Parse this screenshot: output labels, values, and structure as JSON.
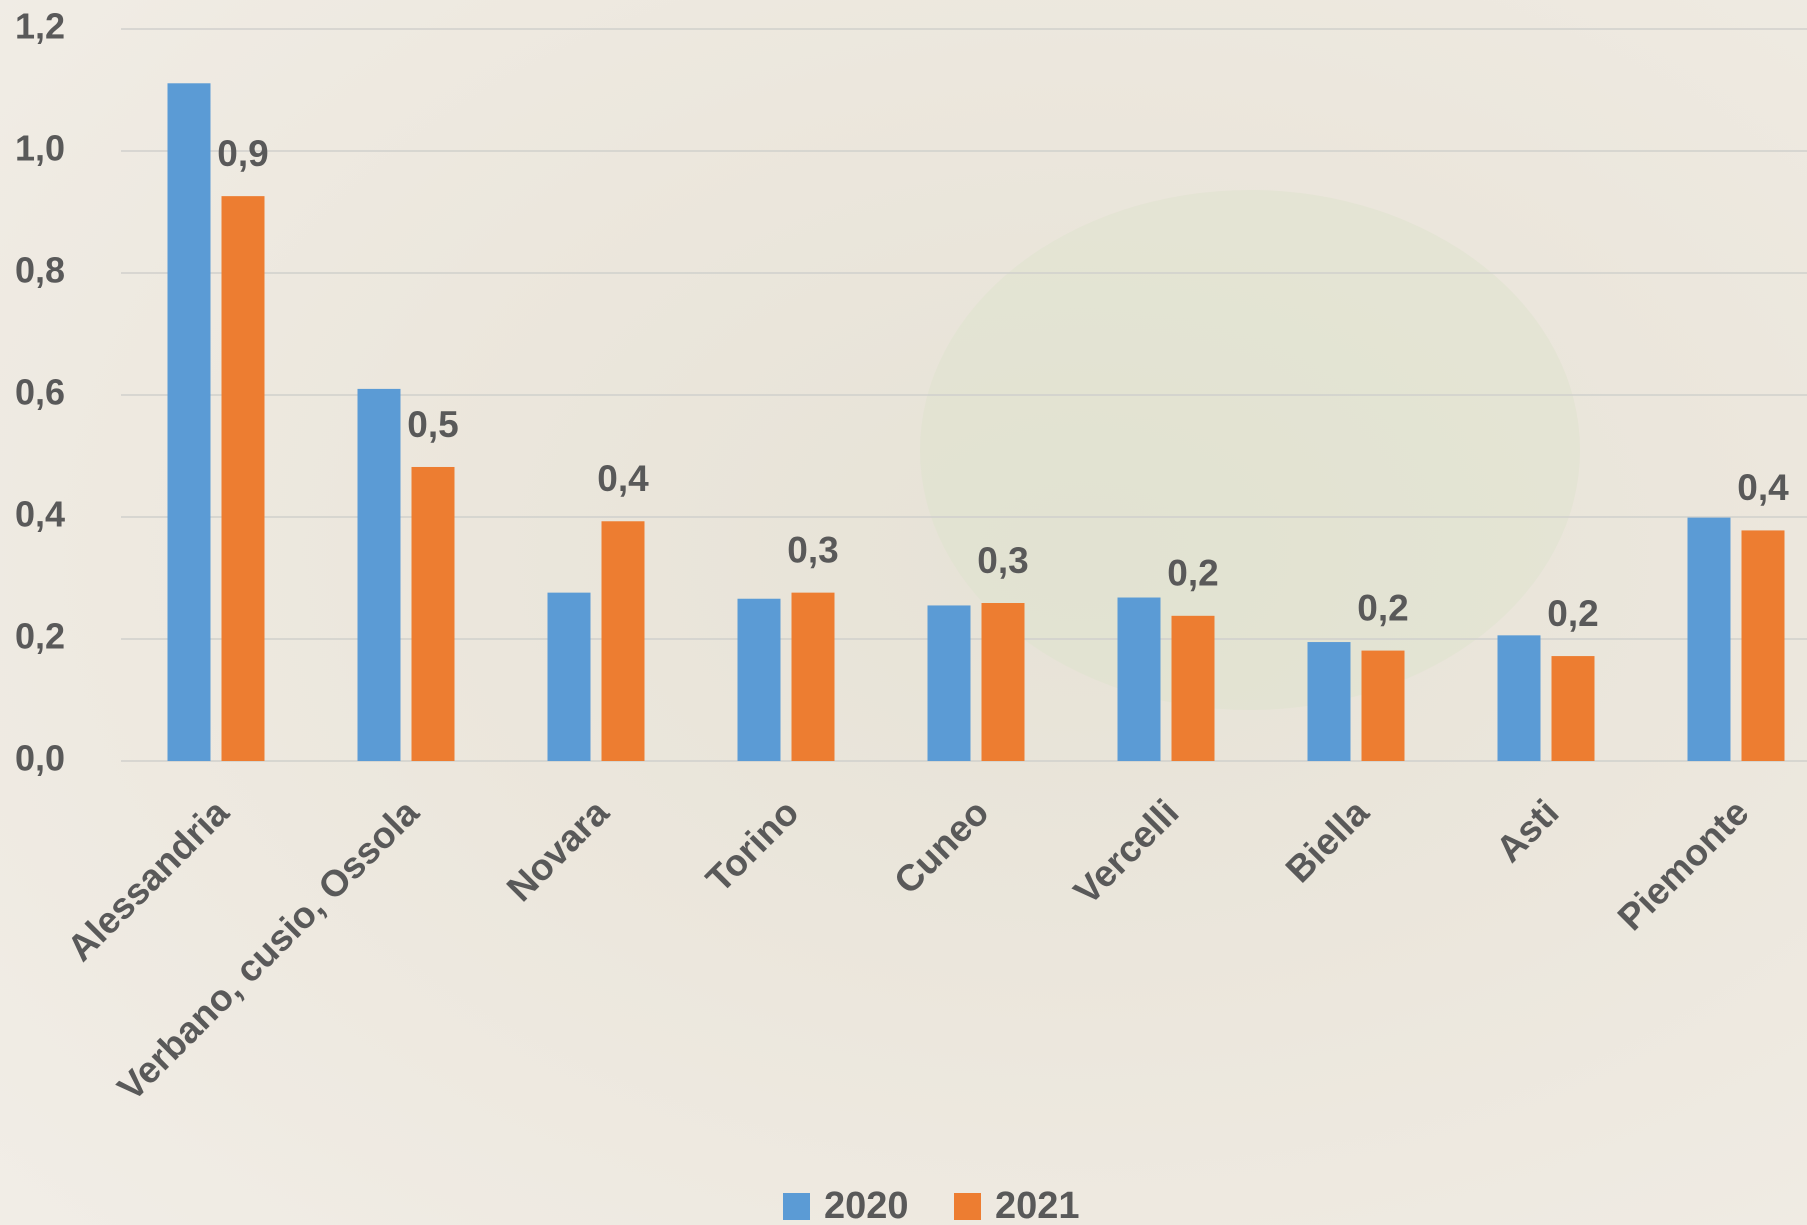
{
  "chart_data": {
    "type": "bar",
    "categories": [
      "Alessandria",
      "Verbano, cusio, Ossola",
      "Novara",
      "Torino",
      "Cuneo",
      "Vercelli",
      "Biella",
      "Asti",
      "Piemonte"
    ],
    "series": [
      {
        "name": "2020",
        "color": "#5b9bd5",
        "values": [
          1.111,
          0.61,
          0.276,
          0.266,
          0.255,
          0.268,
          0.195,
          0.206,
          0.399
        ]
      },
      {
        "name": "2021",
        "color": "#ed7d31",
        "values": [
          0.926,
          0.482,
          0.393,
          0.276,
          0.259,
          0.238,
          0.181,
          0.172,
          0.378
        ],
        "value_labels": [
          "0,9",
          "0,5",
          "0,4",
          "0,3",
          "0,3",
          "0,2",
          "0,2",
          "0,2",
          "0,4"
        ]
      }
    ],
    "ylim": [
      0,
      1.2
    ],
    "yticks": [
      {
        "value": 0,
        "label": "0,0"
      },
      {
        "value": 0.2,
        "label": "0,2"
      },
      {
        "value": 0.4,
        "label": "0,4"
      },
      {
        "value": 0.6,
        "label": "0,6"
      },
      {
        "value": 0.8,
        "label": "0,8"
      },
      {
        "value": 1,
        "label": "1,0"
      },
      {
        "value": 1.2,
        "label": "1,2"
      }
    ],
    "grid": true
  }
}
